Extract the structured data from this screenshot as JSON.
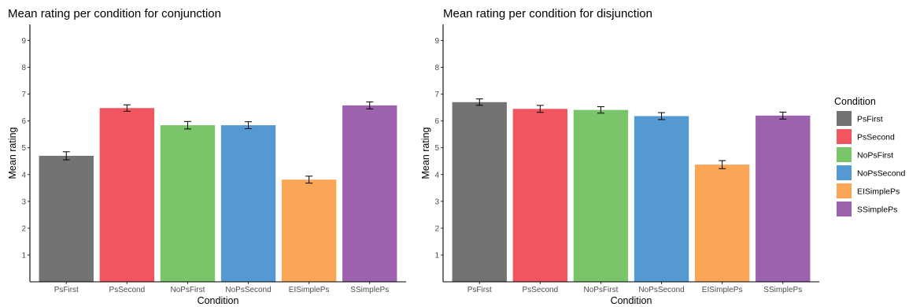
{
  "chart_data": [
    {
      "type": "bar",
      "title": "Mean rating per condition for conjunction",
      "xlabel": "Condition",
      "ylabel": "Mean rating",
      "ylim": [
        0,
        9.6
      ],
      "yticks": [
        1,
        2,
        3,
        4,
        5,
        6,
        7,
        8,
        9
      ],
      "categories": [
        "PsFirst",
        "PsSecond",
        "NoPsFirst",
        "NoPsSecond",
        "EISimplePs",
        "SSimplePs"
      ],
      "values": [
        4.7,
        6.48,
        5.84,
        5.84,
        3.81,
        6.58
      ],
      "error": [
        0.15,
        0.12,
        0.14,
        0.13,
        0.13,
        0.13
      ],
      "grid": false,
      "legend": "none"
    },
    {
      "type": "bar",
      "title": "Mean rating per condition for disjunction",
      "xlabel": "Condition",
      "ylabel": "Mean rating",
      "ylim": [
        0,
        9.6
      ],
      "yticks": [
        1,
        2,
        3,
        4,
        5,
        6,
        7,
        8,
        9
      ],
      "categories": [
        "PsFirst",
        "PsSecond",
        "NoPsFirst",
        "NoPsSecond",
        "EISimplePs",
        "SSimplePs"
      ],
      "values": [
        6.7,
        6.45,
        6.41,
        6.18,
        4.37,
        6.2
      ],
      "error": [
        0.12,
        0.13,
        0.12,
        0.13,
        0.15,
        0.13
      ],
      "grid": false,
      "legend": "right"
    }
  ],
  "legend": {
    "title": "Condition",
    "items": [
      "PsFirst",
      "PsSecond",
      "NoPsFirst",
      "NoPsSecond",
      "EISimplePs",
      "SSimplePs"
    ]
  },
  "colors": [
    "#737373",
    "#f15560",
    "#7ac46a",
    "#5499d2",
    "#fba556",
    "#9c62ad"
  ]
}
